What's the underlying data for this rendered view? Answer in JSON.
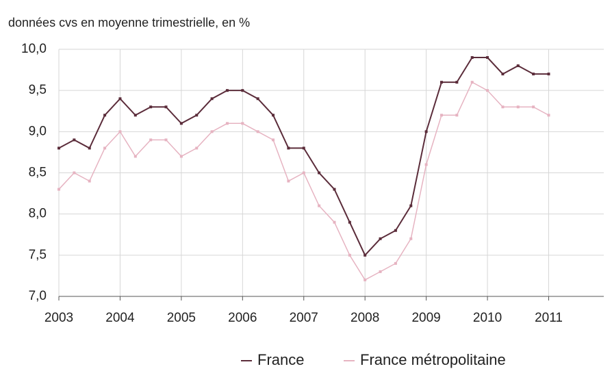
{
  "chart_data": {
    "type": "line",
    "title": "données cvs en moyenne trimestrielle, en %",
    "x": [
      2003,
      2003.25,
      2003.5,
      2003.75,
      2004,
      2004.25,
      2004.5,
      2004.75,
      2005,
      2005.25,
      2005.5,
      2005.75,
      2006,
      2006.25,
      2006.5,
      2006.75,
      2007,
      2007.25,
      2007.5,
      2007.75,
      2008,
      2008.25,
      2008.5,
      2008.75,
      2009,
      2009.25,
      2009.5,
      2009.75,
      2010,
      2010.25,
      2010.5,
      2010.75,
      2011
    ],
    "series": [
      {
        "name": "France",
        "color": "#5b2c3a",
        "values": [
          8.8,
          8.9,
          8.8,
          9.2,
          9.4,
          9.2,
          9.3,
          9.3,
          9.1,
          9.2,
          9.4,
          9.5,
          9.5,
          9.4,
          9.2,
          8.8,
          8.8,
          8.5,
          8.3,
          7.9,
          7.5,
          7.7,
          7.8,
          8.1,
          9.0,
          9.6,
          9.6,
          9.9,
          9.9,
          9.7,
          9.8,
          9.7,
          9.7
        ]
      },
      {
        "name": "France métropolitaine",
        "color": "#e6b3c1",
        "values": [
          8.3,
          8.5,
          8.4,
          8.8,
          9.0,
          8.7,
          8.9,
          8.9,
          8.7,
          8.8,
          9.0,
          9.1,
          9.1,
          9.0,
          8.9,
          8.4,
          8.5,
          8.1,
          7.9,
          7.5,
          7.2,
          7.3,
          7.4,
          7.7,
          8.6,
          9.2,
          9.2,
          9.6,
          9.5,
          9.3,
          9.3,
          9.3,
          9.2
        ]
      }
    ],
    "xlim": [
      2003,
      2011.9
    ],
    "xticks": [
      2003,
      2004,
      2005,
      2006,
      2007,
      2008,
      2009,
      2010,
      2011
    ],
    "ylim": [
      7,
      10
    ],
    "yticks": [
      {
        "value": 7,
        "label": "7,0"
      },
      {
        "value": 7.5,
        "label": "7,5"
      },
      {
        "value": 8,
        "label": "8,0"
      },
      {
        "value": 8.5,
        "label": "8,5"
      },
      {
        "value": 9,
        "label": "9,0"
      },
      {
        "value": 9.5,
        "label": "9,5"
      },
      {
        "value": 10,
        "label": "10,0"
      }
    ],
    "grid": true,
    "legend": "bottom"
  }
}
